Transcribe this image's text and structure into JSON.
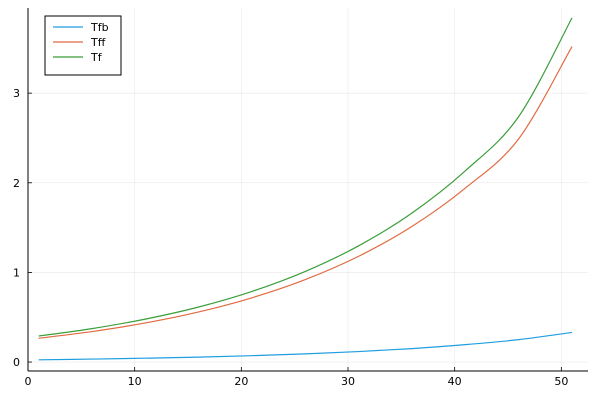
{
  "chart_data": {
    "type": "line",
    "title": "",
    "xlabel": "",
    "ylabel": "",
    "xlim": [
      0,
      52.5
    ],
    "ylim": [
      -0.1,
      3.95
    ],
    "x_ticks": [
      0,
      10,
      20,
      30,
      40,
      50
    ],
    "y_ticks": [
      0,
      1,
      2,
      3
    ],
    "x_tick_labels": [
      "0",
      "10",
      "20",
      "30",
      "40",
      "50"
    ],
    "y_tick_labels": [
      "0",
      "1",
      "2",
      "3"
    ],
    "grid": true,
    "legend_position": "top-left",
    "x": [
      1,
      6,
      11,
      16,
      21,
      26,
      31,
      36,
      41,
      46,
      51
    ],
    "series": [
      {
        "name": "Tfb",
        "color": "#1f9ee0",
        "values": [
          0.025,
          0.033,
          0.043,
          0.055,
          0.071,
          0.091,
          0.117,
          0.15,
          0.194,
          0.25,
          0.33
        ]
      },
      {
        "name": "Tff",
        "color": "#e26a40",
        "values": [
          0.265,
          0.34,
          0.436,
          0.559,
          0.717,
          0.92,
          1.18,
          1.513,
          1.941,
          2.49,
          3.52
        ]
      },
      {
        "name": "Tf",
        "color": "#3a9e3a",
        "values": [
          0.29,
          0.373,
          0.479,
          0.614,
          0.788,
          1.011,
          1.297,
          1.663,
          2.134,
          2.738,
          3.84
        ]
      }
    ]
  }
}
